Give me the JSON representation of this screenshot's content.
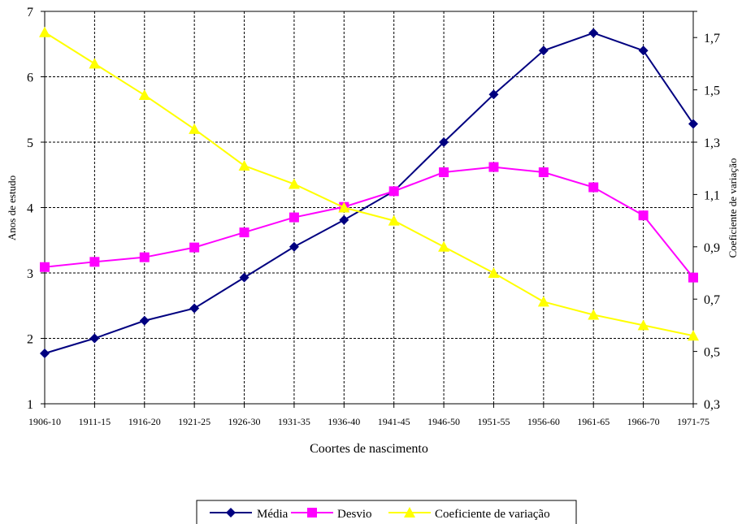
{
  "chart_data": {
    "type": "line",
    "title": "",
    "xlabel": "Coortes de nascimento",
    "ylabel": "Anos de estudo",
    "y2label": "Coeficiente de variação",
    "categories": [
      "1906-10",
      "1911-15",
      "1916-20",
      "1921-25",
      "1926-30",
      "1931-35",
      "1936-40",
      "1941-45",
      "1946-50",
      "1951-55",
      "1956-60",
      "1961-65",
      "1966-70",
      "1971-75"
    ],
    "ylim": [
      1,
      7
    ],
    "yticks": [
      "1",
      "2",
      "3",
      "4",
      "5",
      "6",
      "7"
    ],
    "y2lim": [
      0.3,
      1.8
    ],
    "y2ticks": [
      "0,3",
      "0,5",
      "0,7",
      "0,9",
      "1,1",
      "1,3",
      "1,5",
      "1,7"
    ],
    "grid": true,
    "legend_position": "bottom",
    "series": [
      {
        "name": "Média",
        "axis": "left",
        "marker": "diamond",
        "color": "#000080",
        "values": [
          1.77,
          2.0,
          2.27,
          2.46,
          2.93,
          3.4,
          3.81,
          4.25,
          5.0,
          5.73,
          6.4,
          6.67,
          6.4,
          5.28
        ]
      },
      {
        "name": "Desvio",
        "axis": "left",
        "marker": "square",
        "color": "#ff00ff",
        "values": [
          3.09,
          3.17,
          3.24,
          3.39,
          3.62,
          3.85,
          4.01,
          4.25,
          4.54,
          4.62,
          4.54,
          4.31,
          3.88,
          2.93
        ]
      },
      {
        "name": "Coeficiente de variação",
        "axis": "right",
        "marker": "triangle",
        "color": "#ffff00",
        "values": [
          1.72,
          1.6,
          1.48,
          1.35,
          1.21,
          1.14,
          1.05,
          1.0,
          0.9,
          0.8,
          0.69,
          0.64,
          0.6,
          0.56
        ]
      }
    ]
  }
}
